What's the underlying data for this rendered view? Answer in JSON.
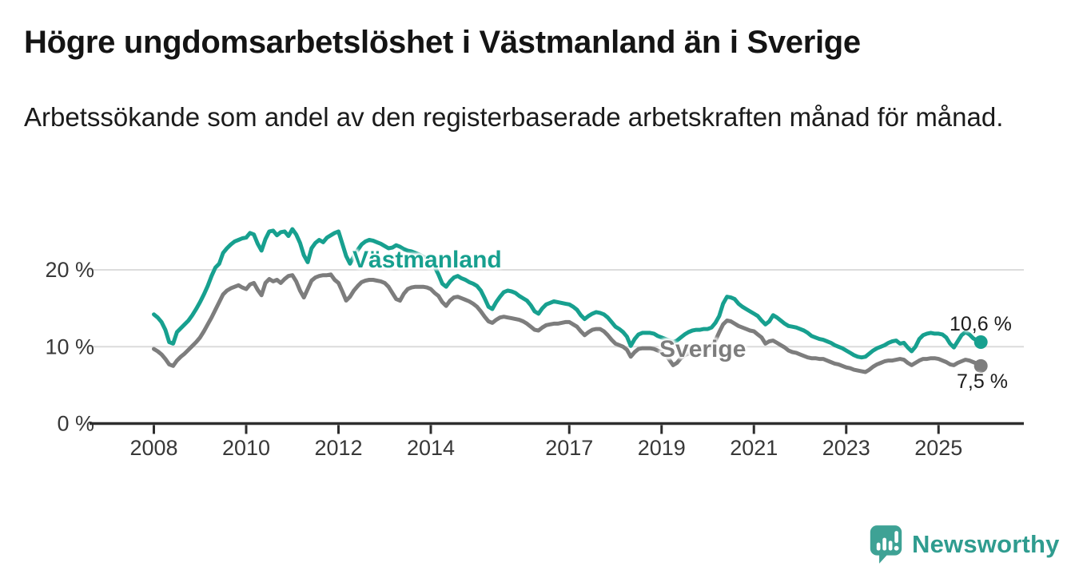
{
  "header": {
    "title": "Högre ungdomsarbetslöshet i Västmanland än i Sverige",
    "subtitle": "Arbetssökande som andel av den registerbaserade arbetskraften månad för månad."
  },
  "chart_data": {
    "type": "line",
    "title": "Högre ungdomsarbetslöshet i Västmanland än i Sverige",
    "subtitle": "Arbetssökande som andel av den registerbaserade arbetskraften månad för månad.",
    "xlabel": "",
    "ylabel": "",
    "ylim": [
      0,
      27
    ],
    "x_unit": "year (monthly resolution)",
    "y_unit": "percent",
    "grid": "horizontal",
    "legend_position": "inline-labels",
    "x_ticks": [
      2008,
      2010,
      2012,
      2014,
      2017,
      2019,
      2021,
      2023,
      2025
    ],
    "y_ticks": [
      {
        "value": 0,
        "label": "0 %"
      },
      {
        "value": 10,
        "label": "10 %"
      },
      {
        "value": 20,
        "label": "20 %"
      }
    ],
    "colors": {
      "grid": "#dcdcdc",
      "axis": "#2d2d2d",
      "tick_text": "#383838",
      "value_label_text": "#1c1c1c"
    },
    "series": [
      {
        "name": "Västmanland",
        "color": "#17a08f",
        "end_label": "10,6 %",
        "end_value": 10.6,
        "start_year": 2008,
        "monthly_values": [
          14.2,
          13.8,
          13.2,
          12.2,
          10.6,
          10.4,
          11.9,
          12.4,
          12.9,
          13.4,
          14.1,
          14.9,
          15.8,
          16.8,
          17.9,
          19.2,
          20.3,
          20.8,
          22.2,
          22.8,
          23.3,
          23.7,
          23.9,
          24.1,
          24.2,
          24.8,
          24.6,
          23.4,
          22.5,
          24.0,
          25.0,
          25.1,
          24.5,
          24.9,
          25.0,
          24.4,
          25.3,
          24.6,
          23.5,
          21.9,
          21.0,
          22.8,
          23.5,
          23.9,
          23.6,
          24.2,
          24.5,
          24.8,
          25.0,
          23.4,
          21.8,
          20.8,
          21.8,
          22.6,
          23.3,
          23.7,
          23.9,
          23.8,
          23.6,
          23.4,
          23.1,
          22.8,
          22.9,
          23.2,
          23.0,
          22.7,
          22.5,
          22.4,
          22.2,
          22.0,
          21.7,
          21.5,
          21.2,
          20.4,
          19.4,
          18.2,
          17.8,
          18.5,
          19.0,
          19.2,
          18.9,
          18.7,
          18.4,
          18.2,
          17.9,
          17.3,
          16.3,
          15.2,
          14.9,
          15.8,
          16.5,
          17.1,
          17.3,
          17.2,
          17.0,
          16.6,
          16.3,
          16.0,
          15.4,
          14.6,
          14.3,
          15.0,
          15.5,
          15.7,
          15.9,
          15.8,
          15.7,
          15.6,
          15.5,
          15.2,
          14.8,
          14.1,
          13.6,
          14.0,
          14.3,
          14.5,
          14.4,
          14.2,
          13.8,
          13.2,
          12.6,
          12.3,
          11.9,
          11.3,
          10.1,
          11.0,
          11.6,
          11.8,
          11.8,
          11.8,
          11.7,
          11.4,
          11.2,
          11.0,
          10.8,
          10.6,
          10.8,
          11.2,
          11.6,
          11.9,
          12.1,
          12.2,
          12.2,
          12.3,
          12.3,
          12.5,
          13.1,
          14.0,
          15.6,
          16.5,
          16.4,
          16.2,
          15.6,
          15.2,
          14.9,
          14.6,
          14.3,
          14.0,
          13.4,
          12.9,
          13.3,
          14.1,
          13.8,
          13.4,
          13.0,
          12.7,
          12.6,
          12.5,
          12.3,
          12.1,
          11.8,
          11.4,
          11.2,
          11.0,
          10.9,
          10.7,
          10.5,
          10.2,
          10.0,
          9.8,
          9.5,
          9.2,
          8.9,
          8.7,
          8.6,
          8.7,
          9.1,
          9.5,
          9.8,
          10.0,
          10.2,
          10.5,
          10.7,
          10.8,
          10.4,
          10.5,
          9.9,
          9.4,
          10.0,
          11.0,
          11.5,
          11.7,
          11.8,
          11.7,
          11.7,
          11.6,
          11.2,
          10.4,
          9.9,
          10.7,
          11.5,
          11.9,
          11.6,
          11.1,
          10.8,
          10.6
        ]
      },
      {
        "name": "Sverige",
        "color": "#7d7d7d",
        "end_label": "7,5 %",
        "end_value": 7.5,
        "start_year": 2008,
        "monthly_values": [
          9.7,
          9.4,
          9.0,
          8.4,
          7.7,
          7.5,
          8.2,
          8.7,
          9.1,
          9.6,
          10.1,
          10.6,
          11.2,
          12.0,
          12.9,
          13.8,
          14.8,
          15.8,
          16.8,
          17.3,
          17.6,
          17.8,
          18.0,
          17.7,
          17.5,
          18.1,
          18.3,
          17.4,
          16.7,
          18.3,
          18.8,
          18.5,
          18.7,
          18.3,
          18.8,
          19.2,
          19.3,
          18.5,
          17.3,
          16.4,
          17.5,
          18.6,
          19.0,
          19.2,
          19.3,
          19.3,
          19.4,
          18.7,
          18.3,
          17.2,
          16.0,
          16.5,
          17.3,
          17.9,
          18.4,
          18.6,
          18.7,
          18.7,
          18.6,
          18.5,
          18.3,
          17.8,
          17.0,
          16.2,
          16.0,
          16.9,
          17.5,
          17.7,
          17.8,
          17.8,
          17.8,
          17.7,
          17.5,
          17.0,
          16.6,
          15.8,
          15.3,
          16.0,
          16.4,
          16.5,
          16.3,
          16.1,
          15.9,
          15.6,
          15.2,
          14.6,
          13.9,
          13.3,
          13.1,
          13.5,
          13.8,
          13.9,
          13.8,
          13.7,
          13.6,
          13.5,
          13.3,
          13.0,
          12.6,
          12.2,
          12.1,
          12.5,
          12.8,
          12.9,
          13.0,
          13.0,
          13.1,
          13.2,
          13.2,
          12.9,
          12.6,
          12.0,
          11.5,
          11.9,
          12.2,
          12.3,
          12.3,
          12.0,
          11.5,
          10.9,
          10.4,
          10.2,
          10.0,
          9.6,
          8.7,
          9.3,
          9.7,
          9.8,
          9.8,
          9.8,
          9.7,
          9.5,
          9.3,
          9.0,
          8.3,
          7.6,
          7.9,
          8.5,
          8.9,
          9.1,
          9.2,
          9.3,
          9.4,
          9.5,
          9.7,
          10.0,
          10.8,
          11.9,
          12.9,
          13.4,
          13.3,
          13.0,
          12.7,
          12.5,
          12.3,
          12.1,
          12.0,
          11.6,
          11.2,
          10.4,
          10.7,
          10.8,
          10.5,
          10.2,
          9.9,
          9.5,
          9.3,
          9.2,
          9.0,
          8.8,
          8.6,
          8.5,
          8.5,
          8.4,
          8.4,
          8.2,
          8.0,
          7.8,
          7.7,
          7.5,
          7.3,
          7.2,
          7.0,
          6.9,
          6.8,
          6.7,
          7.0,
          7.4,
          7.7,
          7.9,
          8.1,
          8.2,
          8.2,
          8.3,
          8.4,
          8.3,
          7.9,
          7.6,
          7.9,
          8.2,
          8.4,
          8.4,
          8.5,
          8.5,
          8.4,
          8.2,
          8.0,
          7.7,
          7.6,
          7.9,
          8.1,
          8.3,
          8.2,
          8.0,
          7.8,
          7.5
        ]
      }
    ]
  },
  "logo": {
    "text": "Newsworthy",
    "icon": "speech-bubble-bar-chart-icon",
    "bubble_color": "#3ea295",
    "text_color": "#2f9c8f"
  }
}
